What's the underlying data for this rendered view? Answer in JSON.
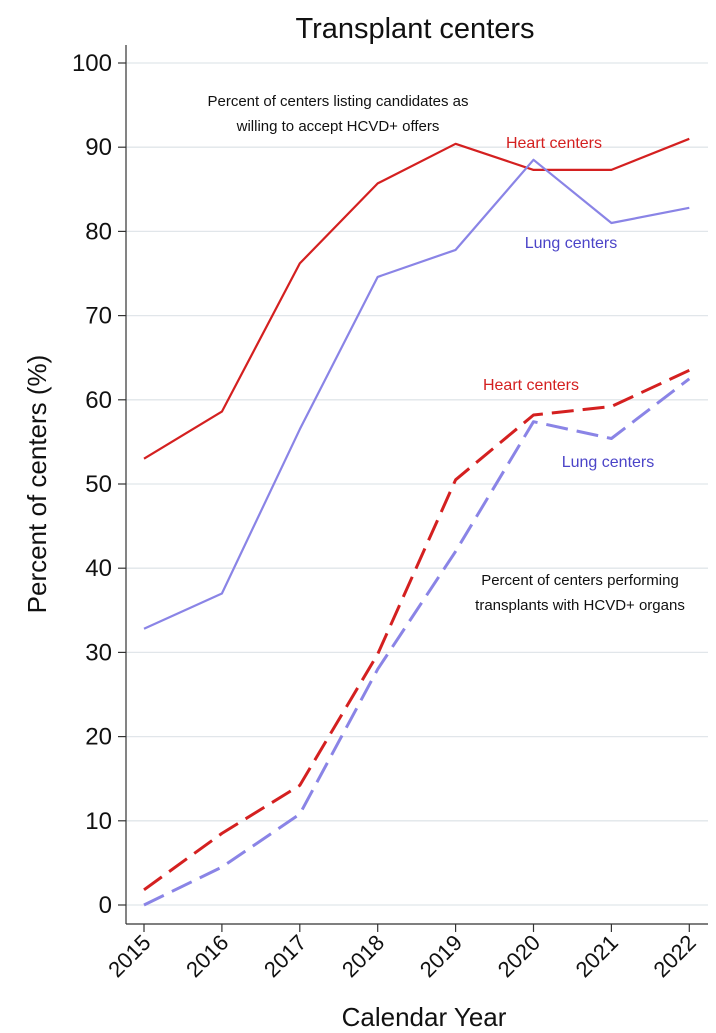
{
  "chart_data": {
    "type": "line",
    "title": "Transplant centers",
    "xlabel": "Calendar Year",
    "ylabel": "Percent of centers (%)",
    "ylim": [
      0,
      100
    ],
    "yticks": [
      "0",
      "10",
      "20",
      "30",
      "40",
      "50",
      "60",
      "70",
      "80",
      "90",
      "100"
    ],
    "categories": [
      "2015",
      "2016",
      "2017",
      "2018",
      "2019",
      "2020",
      "2021",
      "2022"
    ],
    "grid": true,
    "series": [
      {
        "name": "Heart centers",
        "group": "listing",
        "dash": false,
        "color": "#d42020",
        "values": [
          53.0,
          58.6,
          76.2,
          85.7,
          90.4,
          87.3,
          87.3,
          91.0
        ]
      },
      {
        "name": "Lung centers",
        "group": "listing",
        "dash": false,
        "color": "#8a84e6",
        "values": [
          32.8,
          37.0,
          56.5,
          74.6,
          77.8,
          88.5,
          81.0,
          82.8
        ]
      },
      {
        "name": "Heart centers",
        "group": "performing",
        "dash": true,
        "color": "#d42020",
        "values": [
          1.8,
          8.5,
          14.2,
          29.8,
          50.5,
          58.2,
          59.2,
          63.5
        ]
      },
      {
        "name": "Lung centers",
        "group": "performing",
        "dash": true,
        "color": "#8a84e6",
        "values": [
          0.0,
          4.5,
          10.8,
          28.0,
          42.0,
          57.4,
          55.4,
          62.5
        ]
      }
    ],
    "annotations": {
      "listing": [
        "Percent of centers listing candidates as",
        "willing to accept HCVD+ offers"
      ],
      "performing": [
        "Percent of centers performing",
        "transplants with HCVD+ organs"
      ]
    }
  }
}
